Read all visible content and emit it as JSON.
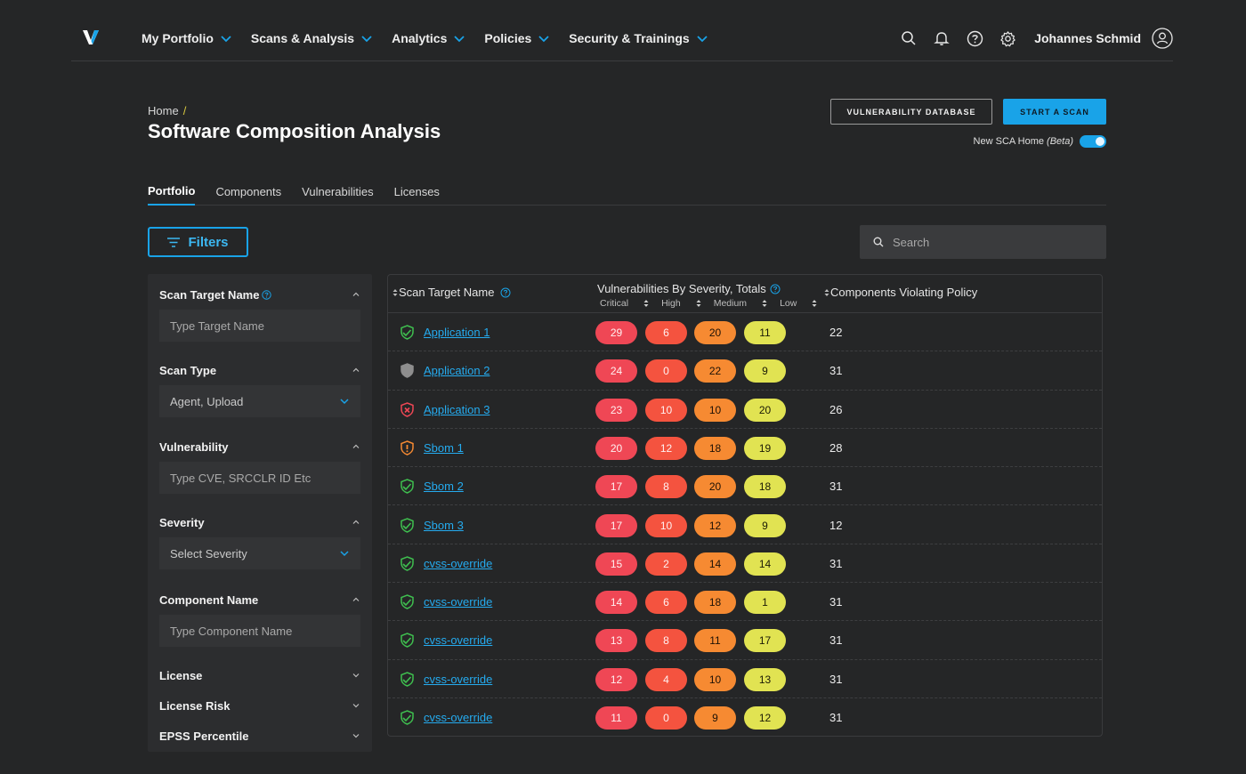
{
  "nav": {
    "items": [
      {
        "label": "My Portfolio"
      },
      {
        "label": "Scans & Analysis"
      },
      {
        "label": "Analytics"
      },
      {
        "label": "Policies"
      },
      {
        "label": "Security & Trainings"
      }
    ],
    "user_name": "Johannes Schmid"
  },
  "header": {
    "breadcrumb_home": "Home",
    "breadcrumb_sep": "/",
    "title": "Software Composition Analysis",
    "vuln_db_label": "VULNERABILITY DATABASE",
    "start_scan_label": "START A SCAN",
    "beta_label": "New SCA Home",
    "beta_tag": "(Beta)",
    "beta_enabled": true
  },
  "tabs": [
    {
      "label": "Portfolio",
      "active": true
    },
    {
      "label": "Components",
      "active": false
    },
    {
      "label": "Vulnerabilities",
      "active": false
    },
    {
      "label": "Licenses",
      "active": false
    }
  ],
  "filters_label": "Filters",
  "search": {
    "placeholder": "Search"
  },
  "filter_panel": {
    "scan_target": {
      "title": "Scan Target Name",
      "placeholder": "Type Target Name"
    },
    "scan_type": {
      "title": "Scan Type",
      "value": "Agent, Upload"
    },
    "vulnerability": {
      "title": "Vulnerability",
      "placeholder": "Type CVE, SRCCLR ID Etc"
    },
    "severity": {
      "title": "Severity",
      "placeholder": "Select Severity"
    },
    "component_name": {
      "title": "Component Name",
      "placeholder": "Type Component Name"
    },
    "license": {
      "title": "License"
    },
    "license_risk": {
      "title": "License Risk"
    },
    "epss": {
      "title": "EPSS Percentile"
    }
  },
  "table": {
    "col_name": "Scan Target Name",
    "col_vuln": "Vulnerabilities By Severity, Totals",
    "sev_critical": "Critical",
    "sev_high": "High",
    "sev_medium": "Medium",
    "sev_low": "Low",
    "col_components": "Components Violating Policy",
    "rows": [
      {
        "name": "Application 1",
        "status": "pass",
        "critical": "29",
        "high": "6",
        "medium": "20",
        "low": "11",
        "components": "22"
      },
      {
        "name": "Application 2",
        "status": "unknown",
        "critical": "24",
        "high": "0",
        "medium": "22",
        "low": "9",
        "components": "31"
      },
      {
        "name": "Application 3",
        "status": "fail",
        "critical": "23",
        "high": "10",
        "medium": "10",
        "low": "20",
        "components": "26"
      },
      {
        "name": "Sbom 1",
        "status": "warning",
        "critical": "20",
        "high": "12",
        "medium": "18",
        "low": "19",
        "components": "28"
      },
      {
        "name": "Sbom 2",
        "status": "pass",
        "critical": "17",
        "high": "8",
        "medium": "20",
        "low": "18",
        "components": "31"
      },
      {
        "name": "Sbom 3",
        "status": "pass",
        "critical": "17",
        "high": "10",
        "medium": "12",
        "low": "9",
        "components": "12"
      },
      {
        "name": "cvss-override",
        "status": "pass",
        "critical": "15",
        "high": "2",
        "medium": "14",
        "low": "14",
        "components": "31"
      },
      {
        "name": "cvss-override",
        "status": "pass",
        "critical": "14",
        "high": "6",
        "medium": "18",
        "low": "1",
        "components": "31"
      },
      {
        "name": "cvss-override",
        "status": "pass",
        "critical": "13",
        "high": "8",
        "medium": "11",
        "low": "17",
        "components": "31"
      },
      {
        "name": "cvss-override",
        "status": "pass",
        "critical": "12",
        "high": "4",
        "medium": "10",
        "low": "13",
        "components": "31"
      },
      {
        "name": "cvss-override",
        "status": "pass",
        "critical": "11",
        "high": "0",
        "medium": "9",
        "low": "12",
        "components": "31"
      }
    ]
  },
  "colors": {
    "accent": "#19a3e8",
    "critical": "#ef4755",
    "high": "#f4533f",
    "medium": "#f68a32",
    "low": "#e1e352",
    "status_pass": "#3fbf4f",
    "status_fail": "#ef4755",
    "status_warning": "#f68a32",
    "status_unknown": "#8e8e8e"
  }
}
